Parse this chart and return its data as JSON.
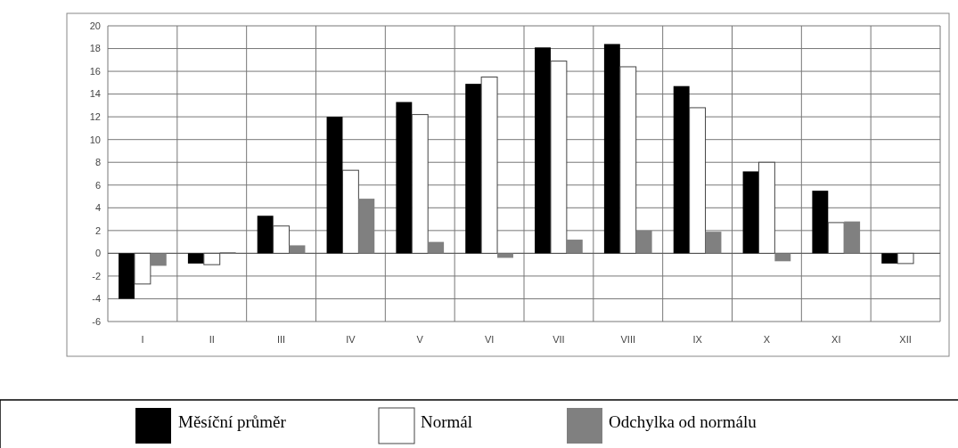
{
  "chart_data": {
    "type": "bar",
    "categories": [
      "I",
      "II",
      "III",
      "IV",
      "V",
      "VI",
      "VII",
      "VIII",
      "IX",
      "X",
      "XI",
      "XII"
    ],
    "series": [
      {
        "name": "Měsíční průměr",
        "color": "#000000",
        "values": [
          -4.0,
          -0.9,
          3.3,
          12.0,
          13.3,
          14.9,
          18.1,
          18.4,
          14.7,
          7.2,
          5.5,
          -0.9
        ]
      },
      {
        "name": "Normál",
        "color": "#ffffff",
        "values": [
          -2.7,
          -1.0,
          2.4,
          7.3,
          12.2,
          15.5,
          16.9,
          16.4,
          12.8,
          8.0,
          2.7,
          -0.9
        ]
      },
      {
        "name": "Odchylka od normálu",
        "color": "#808080",
        "values": [
          -1.1,
          0.1,
          0.7,
          4.8,
          1.0,
          -0.4,
          1.2,
          2.0,
          1.9,
          -0.7,
          2.8,
          null
        ]
      }
    ],
    "ylim": [
      -6,
      20
    ],
    "yticks": [
      -6,
      -4,
      -2,
      0,
      2,
      4,
      6,
      8,
      10,
      12,
      14,
      16,
      18,
      20
    ],
    "grid": true,
    "legend": "bottom"
  }
}
